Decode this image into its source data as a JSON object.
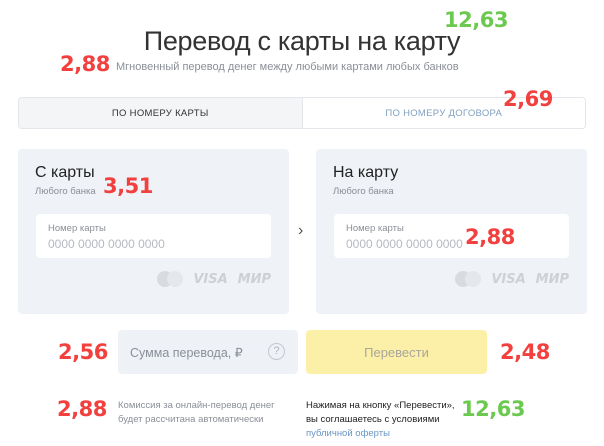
{
  "header": {
    "title": "Перевод с карты на карту",
    "subtitle": "Мгновенный перевод денег между любыми картами любых банков"
  },
  "tabs": [
    {
      "label": "ПО НОМЕРУ КАРТЫ",
      "active": true
    },
    {
      "label": "ПО НОМЕРУ ДОГОВОРА",
      "active": false
    }
  ],
  "from_card": {
    "title": "С карты",
    "subtitle": "Любого банка",
    "field_label": "Номер карты",
    "placeholder": "0000 0000 0000 0000"
  },
  "to_card": {
    "title": "На карту",
    "subtitle": "Любого банка",
    "field_label": "Номер карты",
    "placeholder": "0000 0000 0000 0000"
  },
  "payment_systems": {
    "visa": "VISA",
    "mir": "МИР"
  },
  "amount": {
    "placeholder": "Сумма перевода, ₽",
    "help": "?"
  },
  "submit": {
    "label": "Перевести"
  },
  "notes": {
    "commission_line1": "Комиссия за онлайн-перевод денег",
    "commission_line2": "будет рассчитана автоматически",
    "agreement_line1": "Нажимая на кнопку «Перевести»,",
    "agreement_line2": "вы соглашаетесь с условиями",
    "agreement_link": "публичной оферты"
  },
  "scores": {
    "title": "12,63",
    "subtitle": "2,88",
    "tab": "2,69",
    "from_card": "3,51",
    "to_card_input": "2,88",
    "amount": "2,56",
    "submit": "2,48",
    "commission": "2,88",
    "agreement": "12,63"
  },
  "colors": {
    "score_red": "#f2403f",
    "score_green": "#6cc94f",
    "button_yellow": "#fcf0a8",
    "card_bg": "#eff2f6",
    "link": "#6a95c4"
  }
}
